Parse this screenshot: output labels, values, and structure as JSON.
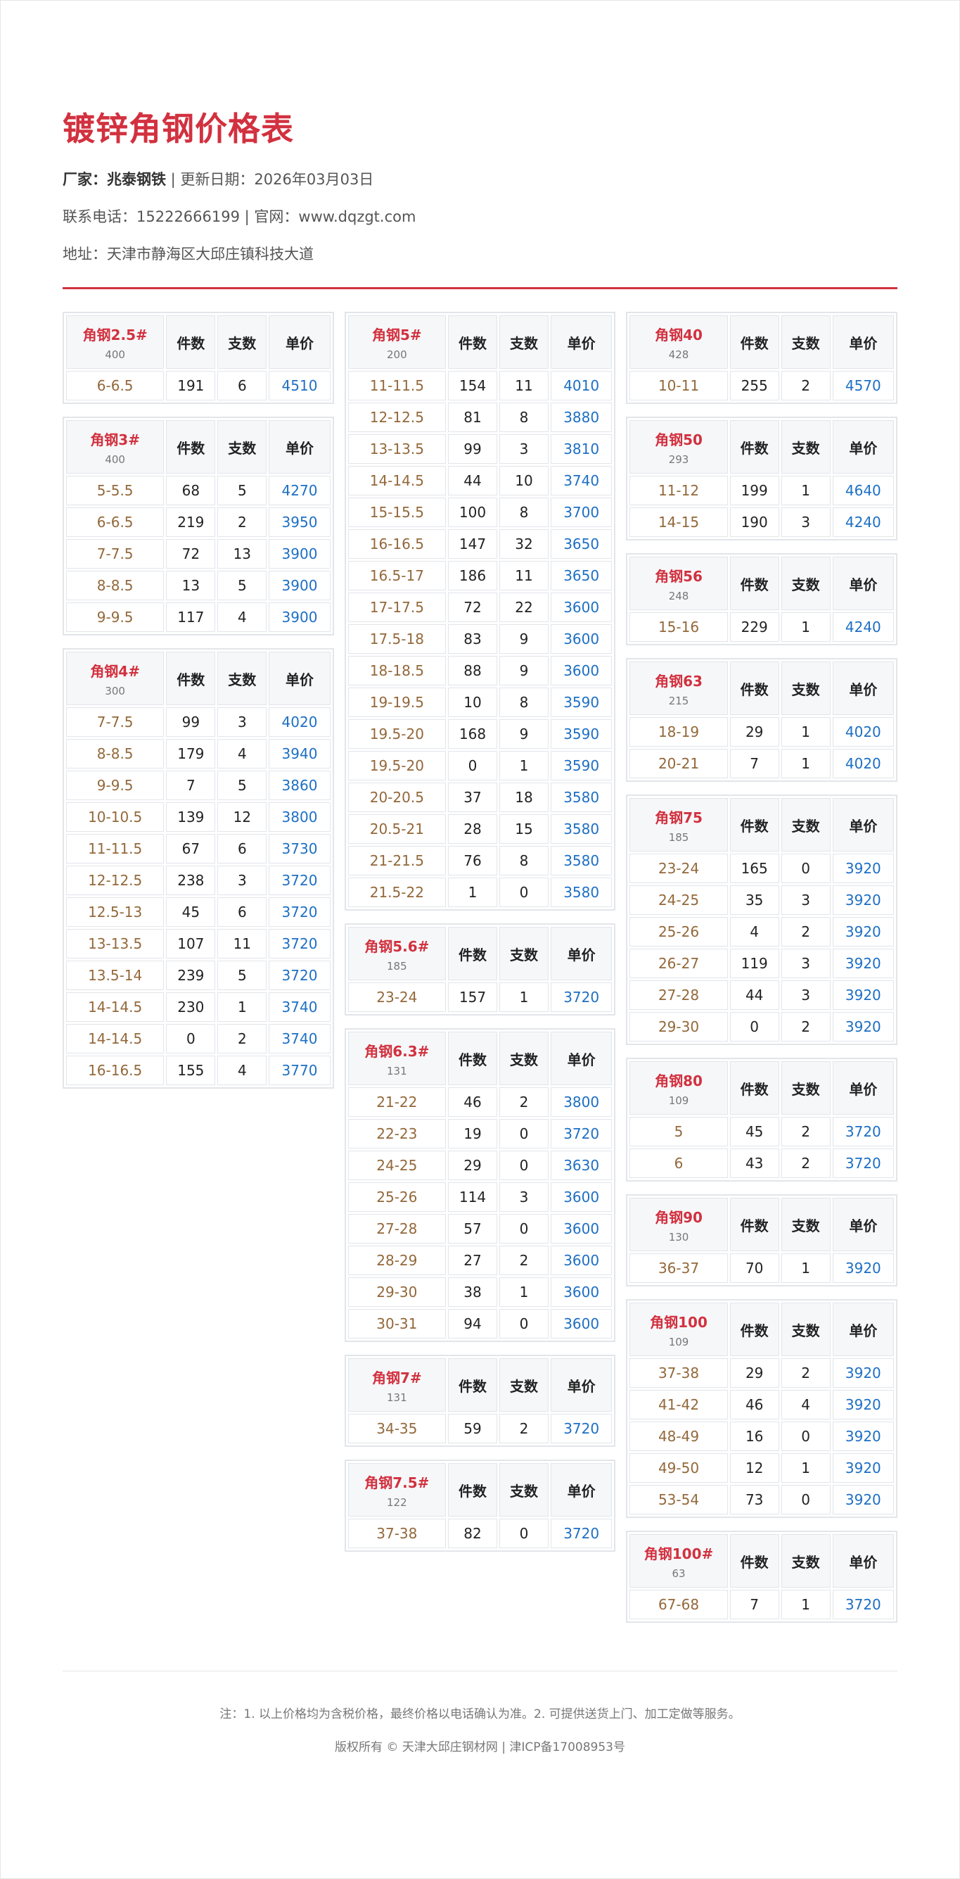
{
  "title": "镀锌角钢价格表",
  "info": {
    "maker_label": "厂家：",
    "maker": "兆泰钢铁",
    "date_text": " | 更新日期：2026年03月03日",
    "contact_text": "联系电话：15222666199 | 官网：www.dqzgt.com",
    "address_text": "地址：天津市静海区大邱庄镇科技大道"
  },
  "colors": {
    "accent": "#d2313f",
    "spec": "#93683a",
    "price": "#1d6fc4"
  },
  "columns_header": [
    "件数",
    "支数",
    "单价"
  ],
  "columns": [
    [
      {
        "name": "角钢2.5#",
        "sub": "400",
        "rows": [
          [
            "6-6.5",
            "191",
            "6",
            "4510"
          ]
        ]
      },
      {
        "name": "角钢3#",
        "sub": "400",
        "rows": [
          [
            "5-5.5",
            "68",
            "5",
            "4270"
          ],
          [
            "6-6.5",
            "219",
            "2",
            "3950"
          ],
          [
            "7-7.5",
            "72",
            "13",
            "3900"
          ],
          [
            "8-8.5",
            "13",
            "5",
            "3900"
          ],
          [
            "9-9.5",
            "117",
            "4",
            "3900"
          ]
        ]
      },
      {
        "name": "角钢4#",
        "sub": "300",
        "rows": [
          [
            "7-7.5",
            "99",
            "3",
            "4020"
          ],
          [
            "8-8.5",
            "179",
            "4",
            "3940"
          ],
          [
            "9-9.5",
            "7",
            "5",
            "3860"
          ],
          [
            "10-10.5",
            "139",
            "12",
            "3800"
          ],
          [
            "11-11.5",
            "67",
            "6",
            "3730"
          ],
          [
            "12-12.5",
            "238",
            "3",
            "3720"
          ],
          [
            "12.5-13",
            "45",
            "6",
            "3720"
          ],
          [
            "13-13.5",
            "107",
            "11",
            "3720"
          ],
          [
            "13.5-14",
            "239",
            "5",
            "3720"
          ],
          [
            "14-14.5",
            "230",
            "1",
            "3740"
          ],
          [
            "14-14.5",
            "0",
            "2",
            "3740"
          ],
          [
            "16-16.5",
            "155",
            "4",
            "3770"
          ]
        ]
      }
    ],
    [
      {
        "name": "角钢5#",
        "sub": "200",
        "rows": [
          [
            "11-11.5",
            "154",
            "11",
            "4010"
          ],
          [
            "12-12.5",
            "81",
            "8",
            "3880"
          ],
          [
            "13-13.5",
            "99",
            "3",
            "3810"
          ],
          [
            "14-14.5",
            "44",
            "10",
            "3740"
          ],
          [
            "15-15.5",
            "100",
            "8",
            "3700"
          ],
          [
            "16-16.5",
            "147",
            "32",
            "3650"
          ],
          [
            "16.5-17",
            "186",
            "11",
            "3650"
          ],
          [
            "17-17.5",
            "72",
            "22",
            "3600"
          ],
          [
            "17.5-18",
            "83",
            "9",
            "3600"
          ],
          [
            "18-18.5",
            "88",
            "9",
            "3600"
          ],
          [
            "19-19.5",
            "10",
            "8",
            "3590"
          ],
          [
            "19.5-20",
            "168",
            "9",
            "3590"
          ],
          [
            "19.5-20",
            "0",
            "1",
            "3590"
          ],
          [
            "20-20.5",
            "37",
            "18",
            "3580"
          ],
          [
            "20.5-21",
            "28",
            "15",
            "3580"
          ],
          [
            "21-21.5",
            "76",
            "8",
            "3580"
          ],
          [
            "21.5-22",
            "1",
            "0",
            "3580"
          ]
        ]
      },
      {
        "name": "角钢5.6#",
        "sub": "185",
        "rows": [
          [
            "23-24",
            "157",
            "1",
            "3720"
          ]
        ]
      },
      {
        "name": "角钢6.3#",
        "sub": "131",
        "rows": [
          [
            "21-22",
            "46",
            "2",
            "3800"
          ],
          [
            "22-23",
            "19",
            "0",
            "3720"
          ],
          [
            "24-25",
            "29",
            "0",
            "3630"
          ],
          [
            "25-26",
            "114",
            "3",
            "3600"
          ],
          [
            "27-28",
            "57",
            "0",
            "3600"
          ],
          [
            "28-29",
            "27",
            "2",
            "3600"
          ],
          [
            "29-30",
            "38",
            "1",
            "3600"
          ],
          [
            "30-31",
            "94",
            "0",
            "3600"
          ]
        ]
      },
      {
        "name": "角钢7#",
        "sub": "131",
        "rows": [
          [
            "34-35",
            "59",
            "2",
            "3720"
          ]
        ]
      },
      {
        "name": "角钢7.5#",
        "sub": "122",
        "rows": [
          [
            "37-38",
            "82",
            "0",
            "3720"
          ]
        ]
      }
    ],
    [
      {
        "name": "角钢40",
        "sub": "428",
        "rows": [
          [
            "10-11",
            "255",
            "2",
            "4570"
          ]
        ]
      },
      {
        "name": "角钢50",
        "sub": "293",
        "rows": [
          [
            "11-12",
            "199",
            "1",
            "4640"
          ],
          [
            "14-15",
            "190",
            "3",
            "4240"
          ]
        ]
      },
      {
        "name": "角钢56",
        "sub": "248",
        "rows": [
          [
            "15-16",
            "229",
            "1",
            "4240"
          ]
        ]
      },
      {
        "name": "角钢63",
        "sub": "215",
        "rows": [
          [
            "18-19",
            "29",
            "1",
            "4020"
          ],
          [
            "20-21",
            "7",
            "1",
            "4020"
          ]
        ]
      },
      {
        "name": "角钢75",
        "sub": "185",
        "rows": [
          [
            "23-24",
            "165",
            "0",
            "3920"
          ],
          [
            "24-25",
            "35",
            "3",
            "3920"
          ],
          [
            "25-26",
            "4",
            "2",
            "3920"
          ],
          [
            "26-27",
            "119",
            "3",
            "3920"
          ],
          [
            "27-28",
            "44",
            "3",
            "3920"
          ],
          [
            "29-30",
            "0",
            "2",
            "3920"
          ]
        ]
      },
      {
        "name": "角钢80",
        "sub": "109",
        "rows": [
          [
            "5",
            "45",
            "2",
            "3720"
          ],
          [
            "6",
            "43",
            "2",
            "3720"
          ]
        ]
      },
      {
        "name": "角钢90",
        "sub": "130",
        "rows": [
          [
            "36-37",
            "70",
            "1",
            "3920"
          ]
        ]
      },
      {
        "name": "角钢100",
        "sub": "109",
        "rows": [
          [
            "37-38",
            "29",
            "2",
            "3920"
          ],
          [
            "41-42",
            "46",
            "4",
            "3920"
          ],
          [
            "48-49",
            "16",
            "0",
            "3920"
          ],
          [
            "49-50",
            "12",
            "1",
            "3920"
          ],
          [
            "53-54",
            "73",
            "0",
            "3920"
          ]
        ]
      },
      {
        "name": "角钢100#",
        "sub": "63",
        "rows": [
          [
            "67-68",
            "7",
            "1",
            "3720"
          ]
        ]
      }
    ]
  ],
  "footer": {
    "note": "注：1. 以上价格均为含税价格，最终价格以电话确认为准。2. 可提供送货上门、加工定做等服务。",
    "copyright": "版权所有 © 天津大邱庄钢材网 | 津ICP备17008953号"
  }
}
